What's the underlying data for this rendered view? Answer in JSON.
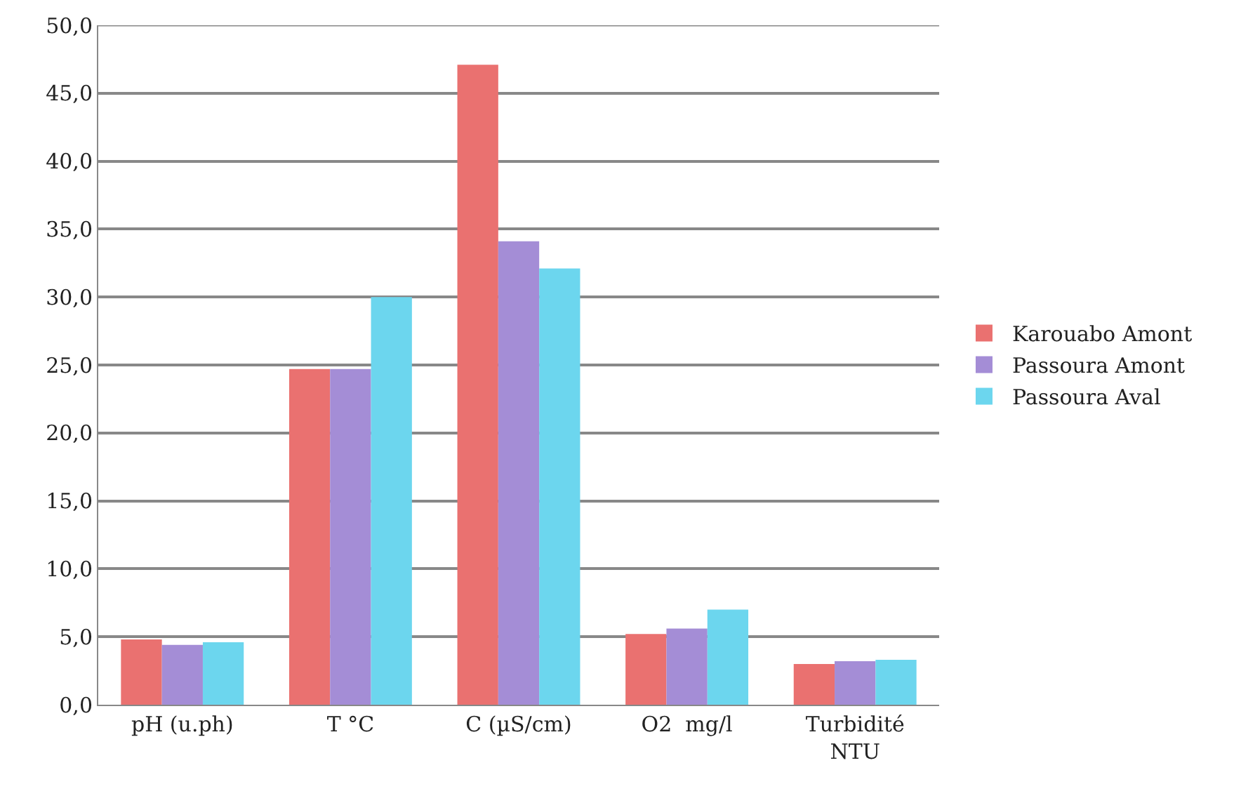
{
  "chart_data": {
    "type": "bar",
    "categories": [
      "pH (u.ph)",
      "T °C",
      "C (µS/cm)",
      "O2  mg/l",
      "Turbidité NTU"
    ],
    "series": [
      {
        "name": "Karouabo Amont",
        "color": "#ea7170",
        "values": [
          4.8,
          24.7,
          47.1,
          5.2,
          3.0
        ]
      },
      {
        "name": "Passoura Amont",
        "color": "#a48dd6",
        "values": [
          4.4,
          24.7,
          34.1,
          5.6,
          3.2
        ]
      },
      {
        "name": "Passoura Aval",
        "color": "#6cd6ee",
        "values": [
          4.6,
          30.0,
          32.1,
          7.0,
          3.3
        ]
      }
    ],
    "ylim": [
      0,
      50
    ],
    "yticks": [
      {
        "value": 0,
        "label": "0,0"
      },
      {
        "value": 5,
        "label": "5,0"
      },
      {
        "value": 10,
        "label": "10,0"
      },
      {
        "value": 15,
        "label": "15,0"
      },
      {
        "value": 20,
        "label": "20,0"
      },
      {
        "value": 25,
        "label": "25,0"
      },
      {
        "value": 30,
        "label": "30,0"
      },
      {
        "value": 35,
        "label": "35,0"
      },
      {
        "value": 40,
        "label": "40,0"
      },
      {
        "value": 45,
        "label": "45,0"
      },
      {
        "value": 50,
        "label": "50,0"
      }
    ],
    "grid": "y",
    "legend": "right"
  }
}
